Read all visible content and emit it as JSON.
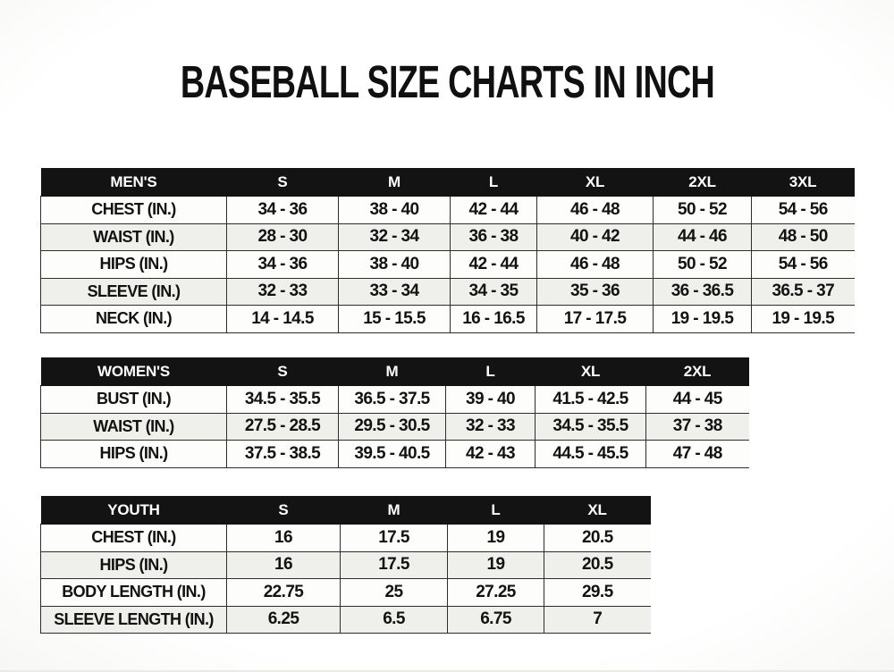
{
  "title": "BASEBALL SIZE CHARTS IN INCH",
  "colors": {
    "header_bg": "#131313",
    "header_text": "#ffffff",
    "row_bg": "#fdfdfc",
    "row_alt_bg": "#efefec",
    "border": "#2d2d2d",
    "text": "#121212"
  },
  "chart_data": [
    {
      "type": "table",
      "name": "mens",
      "header": "MEN'S",
      "columns": [
        "S",
        "M",
        "L",
        "XL",
        "2XL",
        "3XL"
      ],
      "rows": [
        {
          "label": "CHEST (IN.)",
          "values": [
            "34 - 36",
            "38 - 40",
            "42 - 44",
            "46 - 48",
            "50 - 52",
            "54 - 56"
          ]
        },
        {
          "label": "WAIST (IN.)",
          "values": [
            "28 - 30",
            "32 - 34",
            "36 - 38",
            "40 - 42",
            "44 - 46",
            "48 - 50"
          ]
        },
        {
          "label": "HIPS (IN.)",
          "values": [
            "34 - 36",
            "38 - 40",
            "42 - 44",
            "46 - 48",
            "50 - 52",
            "54 - 56"
          ]
        },
        {
          "label": "SLEEVE (IN.)",
          "values": [
            "32 - 33",
            "33 - 34",
            "34 - 35",
            "35 - 36",
            "36 - 36.5",
            "36.5 - 37"
          ]
        },
        {
          "label": "NECK (IN.)",
          "values": [
            "14 - 14.5",
            "15 - 15.5",
            "16 - 16.5",
            "17 - 17.5",
            "19 - 19.5",
            "19 - 19.5"
          ]
        }
      ]
    },
    {
      "type": "table",
      "name": "womens",
      "header": "WOMEN'S",
      "columns": [
        "S",
        "M",
        "L",
        "XL",
        "2XL"
      ],
      "rows": [
        {
          "label": "BUST (IN.)",
          "values": [
            "34.5 - 35.5",
            "36.5 - 37.5",
            "39 - 40",
            "41.5 - 42.5",
            "44 - 45"
          ]
        },
        {
          "label": "WAIST (IN.)",
          "values": [
            "27.5 - 28.5",
            "29.5 - 30.5",
            "32 - 33",
            "34.5 - 35.5",
            "37 - 38"
          ]
        },
        {
          "label": "HIPS (IN.)",
          "values": [
            "37.5 - 38.5",
            "39.5 - 40.5",
            "42 - 43",
            "44.5 - 45.5",
            "47 - 48"
          ]
        }
      ]
    },
    {
      "type": "table",
      "name": "youth",
      "header": "YOUTH",
      "columns": [
        "S",
        "M",
        "L",
        "XL"
      ],
      "rows": [
        {
          "label": "CHEST (IN.)",
          "values": [
            "16",
            "17.5",
            "19",
            "20.5"
          ]
        },
        {
          "label": "HIPS (IN.)",
          "values": [
            "16",
            "17.5",
            "19",
            "20.5"
          ]
        },
        {
          "label": "BODY LENGTH (IN.)",
          "values": [
            "22.75",
            "25",
            "27.25",
            "29.5"
          ]
        },
        {
          "label": "SLEEVE LENGTH (IN.)",
          "values": [
            "6.25",
            "6.5",
            "6.75",
            "7"
          ]
        }
      ]
    }
  ]
}
